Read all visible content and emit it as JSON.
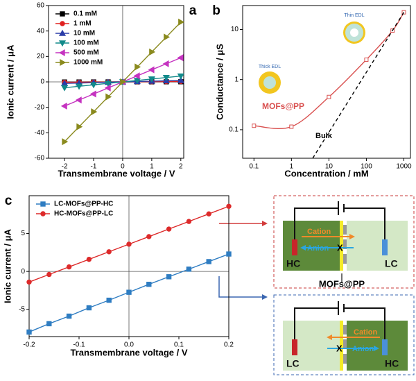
{
  "chart_data": [
    {
      "type": "line",
      "panel_label": "a",
      "xlabel": "Transmembrane voltage / V",
      "ylabel": "Ionic current / μA",
      "x": [
        -2,
        -1.5,
        -1,
        -0.5,
        0,
        0.5,
        1,
        1.5,
        2
      ],
      "series": [
        {
          "name": "0.1 mM",
          "color": "#000000",
          "marker": "square",
          "values": [
            -0.1,
            -0.08,
            -0.05,
            -0.03,
            0,
            0.03,
            0.05,
            0.08,
            0.1
          ]
        },
        {
          "name": "1 mM",
          "color": "#e0201f",
          "marker": "circle",
          "values": [
            -0.3,
            -0.23,
            -0.15,
            -0.08,
            0,
            0.08,
            0.15,
            0.23,
            0.3
          ]
        },
        {
          "name": "10 mM",
          "color": "#2b3da8",
          "marker": "triangle-up",
          "values": [
            -1.2,
            -0.9,
            -0.6,
            -0.3,
            0,
            0.3,
            0.6,
            0.9,
            1.2
          ]
        },
        {
          "name": "100 mM",
          "color": "#128a8a",
          "marker": "triangle-down",
          "values": [
            -4.6,
            -3.45,
            -2.3,
            -1.15,
            0,
            1.15,
            2.3,
            3.45,
            4.6
          ]
        },
        {
          "name": "500 mM",
          "color": "#c533c0",
          "marker": "triangle-left",
          "values": [
            -19,
            -14.25,
            -9.5,
            -4.75,
            0,
            4.75,
            9.5,
            14.25,
            19
          ]
        },
        {
          "name": "1000 mM",
          "color": "#8a8a1e",
          "marker": "triangle-right",
          "values": [
            -47,
            -35.25,
            -23.5,
            -11.75,
            0,
            11.75,
            23.5,
            35.25,
            47
          ]
        }
      ],
      "xlim": [
        -2.55,
        2.1
      ],
      "xticks": [
        -2,
        -1,
        0,
        1,
        2
      ],
      "ylim": [
        -60,
        60
      ],
      "yticks": [
        -60,
        -40,
        -20,
        0,
        20,
        40,
        60
      ],
      "zero_lines": true,
      "legend": "upper left"
    },
    {
      "type": "line",
      "panel_label": "b",
      "xlabel": "Concentration / mM",
      "ylabel": "Conductance / μS",
      "series": [
        {
          "name": "MOFs@PP",
          "color": "#d9504f",
          "marker": "square-open",
          "x": [
            0.1,
            1,
            10,
            100,
            500,
            1000
          ],
          "values": [
            0.12,
            0.115,
            0.45,
            2.5,
            9.5,
            22
          ]
        },
        {
          "name": "Bulk",
          "color": "#000000",
          "dash": true,
          "x": [
            3.7,
            1000
          ],
          "values": [
            0.027,
            22
          ]
        }
      ],
      "annotations": [
        "Thick EDL",
        "Thin EDL"
      ],
      "xlog": true,
      "ylog": true,
      "xlim": [
        0.05,
        1500
      ],
      "xticks": [
        0.1,
        1,
        10,
        100,
        1000
      ],
      "ylim": [
        0.027,
        30
      ],
      "yticks": [
        0.1,
        1,
        10
      ]
    },
    {
      "type": "line",
      "panel_label": "c",
      "xlabel": "Transmembrane voltage / V",
      "ylabel": "Ionic current / μA",
      "x": [
        -0.2,
        -0.16,
        -0.12,
        -0.08,
        -0.04,
        0,
        0.04,
        0.08,
        0.12,
        0.16,
        0.2
      ],
      "series": [
        {
          "name": "LC-MOFs@PP-HC",
          "color": "#2f7dc2",
          "marker": "square",
          "values": [
            -8,
            -6.9,
            -5.9,
            -4.8,
            -3.8,
            -2.75,
            -1.7,
            -0.7,
            0.3,
            1.3,
            2.3
          ]
        },
        {
          "name": "HC-MOFs@PP-LC",
          "color": "#dd2a2a",
          "marker": "circle",
          "values": [
            -1.4,
            -0.4,
            0.6,
            1.6,
            2.6,
            3.6,
            4.6,
            5.6,
            6.6,
            7.6,
            8.6
          ]
        }
      ],
      "xlim": [
        -0.2,
        0.2
      ],
      "xticks": [
        -0.2,
        -0.1,
        {
          "value": 0,
          "label": "0.0"
        },
        0.1,
        0.2
      ],
      "ylim": [
        -8.6,
        10
      ],
      "yticks": [
        -5,
        0,
        5
      ],
      "zero_lines": true,
      "legend": "upper left"
    }
  ],
  "schematic": {
    "top": {
      "left": "HC",
      "right": "LC",
      "cation": "Cation",
      "anion": "Anion",
      "block": "X"
    },
    "membrane": "MOFs@PP",
    "bottom": {
      "left": "LC",
      "right": "HC",
      "cation": "Cation",
      "anion": "Anion",
      "block": "X"
    }
  }
}
